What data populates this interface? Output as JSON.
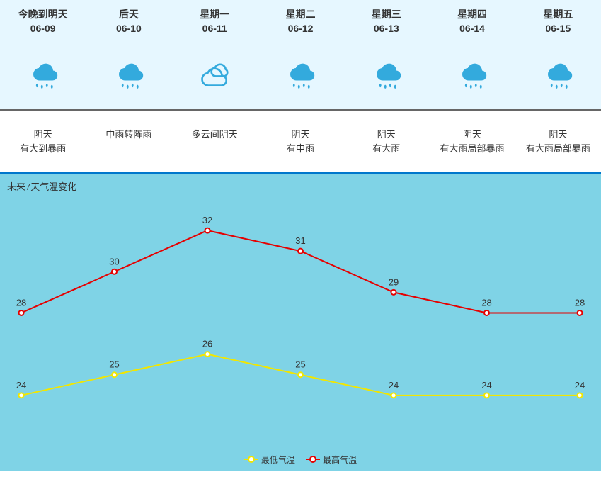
{
  "days": [
    {
      "label": "今晚到明天",
      "date": "06-09",
      "icon": "rain",
      "desc": "阴天\n有大到暴雨"
    },
    {
      "label": "后天",
      "date": "06-10",
      "icon": "rain",
      "desc": "中雨转阵雨"
    },
    {
      "label": "星期一",
      "date": "06-11",
      "icon": "cloudy",
      "desc": "多云间阴天"
    },
    {
      "label": "星期二",
      "date": "06-12",
      "icon": "rain",
      "desc": "阴天\n有中雨"
    },
    {
      "label": "星期三",
      "date": "06-13",
      "icon": "rain",
      "desc": "阴天\n有大雨"
    },
    {
      "label": "星期四",
      "date": "06-14",
      "icon": "rain",
      "desc": "阴天\n有大雨局部暴雨"
    },
    {
      "label": "星期五",
      "date": "06-15",
      "icon": "rain",
      "desc": "阴天\n有大雨局部暴雨"
    }
  ],
  "chart": {
    "title": "未来7天气温变化",
    "type": "line",
    "series": {
      "high": {
        "label": "最高气温",
        "color": "#e60000",
        "values": [
          28,
          30,
          32,
          31,
          29,
          28,
          28
        ]
      },
      "low": {
        "label": "最低气温",
        "color": "#f2e600",
        "values": [
          24,
          25,
          26,
          25,
          24,
          24,
          24
        ]
      }
    },
    "ylim": [
      22,
      33
    ],
    "background_color": "#7fd3e6",
    "line_width": 2,
    "marker_radius": 3.5,
    "label_fontsize": 13,
    "label_color": "#333333"
  },
  "colors": {
    "sky_panel": "#e6f7ff",
    "icon_fill": "#33aadd",
    "icon_stroke": "#33aadd",
    "divider": "#666666",
    "blue_rule": "#0077cc"
  }
}
